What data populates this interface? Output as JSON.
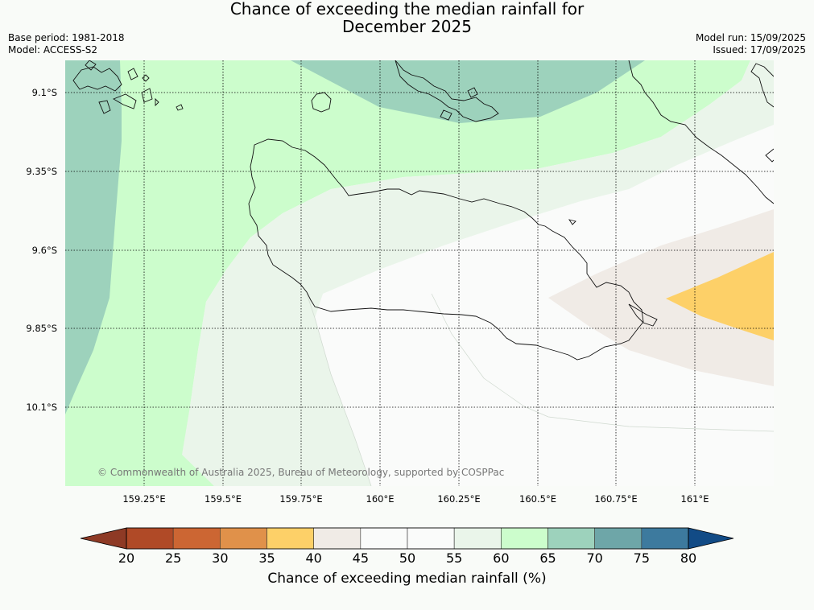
{
  "title": {
    "line1": "Chance of exceeding the median rainfall for",
    "line2": "December 2025"
  },
  "meta_left": {
    "base_period": "Base period: 1981-2018",
    "model": "Model: ACCESS-S2"
  },
  "meta_right": {
    "model_run": "Model run: 15/09/2025",
    "issued": "Issued: 17/09/2025"
  },
  "lat_labels": [
    "9.1°S",
    "9.35°S",
    "9.6°S",
    "9.85°S",
    "10.1°S"
  ],
  "lon_labels": [
    "159.25°E",
    "159.5°E",
    "159.75°E",
    "160°E",
    "160.25°E",
    "160.5°E",
    "160.75°E",
    "161°E"
  ],
  "copyright": "© Commonwealth of Australia 2025, Bureau of Meteorology, supported by COSPPac",
  "colorbar": {
    "title": "Chance of exceeding median rainfall (%)",
    "ticks": [
      "20",
      "25",
      "30",
      "35",
      "40",
      "45",
      "50",
      "55",
      "60",
      "65",
      "70",
      "75",
      "80"
    ],
    "colors": [
      "#b04a27",
      "#cc6633",
      "#e0914a",
      "#fdd068",
      "#f0ebe6",
      "#fafbfa",
      "#fafbfa",
      "#eaf5ea",
      "#ccfdcc",
      "#9dd2bc",
      "#6ea6a8",
      "#3d7a9e"
    ],
    "under_color": "#8e3a25",
    "over_color": "#124b86"
  },
  "chart_data": {
    "type": "heatmap",
    "variable": "Chance of exceeding median rainfall (%)",
    "lat_range": [
      "9.0°S",
      "10.25°S"
    ],
    "lon_range": [
      "159.0°E",
      "161.25°E"
    ],
    "regions": [
      {
        "range": "65-70",
        "location": "north-west corner and north-central (Nggela Islands)"
      },
      {
        "range": "60-65",
        "location": "western and northern Guadalcanal surroundings"
      },
      {
        "range": "55-60",
        "location": "band across northern Guadalcanal"
      },
      {
        "range": "45-55",
        "location": "central and southern Guadalcanal"
      },
      {
        "range": "40-45",
        "location": "eastern tip near 160.8°E-161.25°E"
      },
      {
        "range": "35-40",
        "location": "far east around 161°E, 9.7°S"
      }
    ]
  }
}
